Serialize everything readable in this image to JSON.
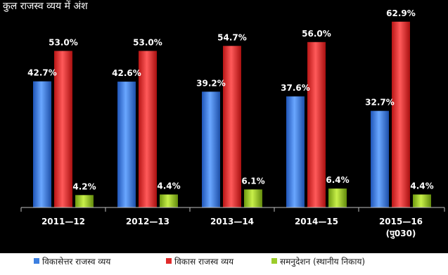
{
  "chart_data": {
    "type": "bar",
    "title": "कुल राजस्व व्यय में अंश",
    "categories": [
      "2011—12",
      "2012—13",
      "2013—14",
      "2014—15",
      "2015—16"
    ],
    "category_sublabels": [
      "",
      "",
      "",
      "",
      "(पु030)"
    ],
    "series": [
      {
        "name": "विकासेत्तर राजस्व व्यय",
        "values": [
          42.7,
          42.6,
          39.2,
          37.6,
          32.7
        ],
        "color": "#3d7fe0"
      },
      {
        "name": "विकास राजस्व व्यय",
        "values": [
          53.0,
          53.0,
          54.7,
          56.0,
          62.9
        ],
        "color": "#e02a2a"
      },
      {
        "name": "समनुदेशन (स्थानीय निकाय)",
        "values": [
          4.2,
          4.4,
          6.1,
          6.4,
          4.4
        ],
        "color": "#9ccc2a"
      }
    ],
    "value_suffix": "%",
    "ylim": [
      0,
      70
    ],
    "grid": false,
    "legend_position": "bottom",
    "background": "#000000",
    "text_color": "#ffffff"
  }
}
